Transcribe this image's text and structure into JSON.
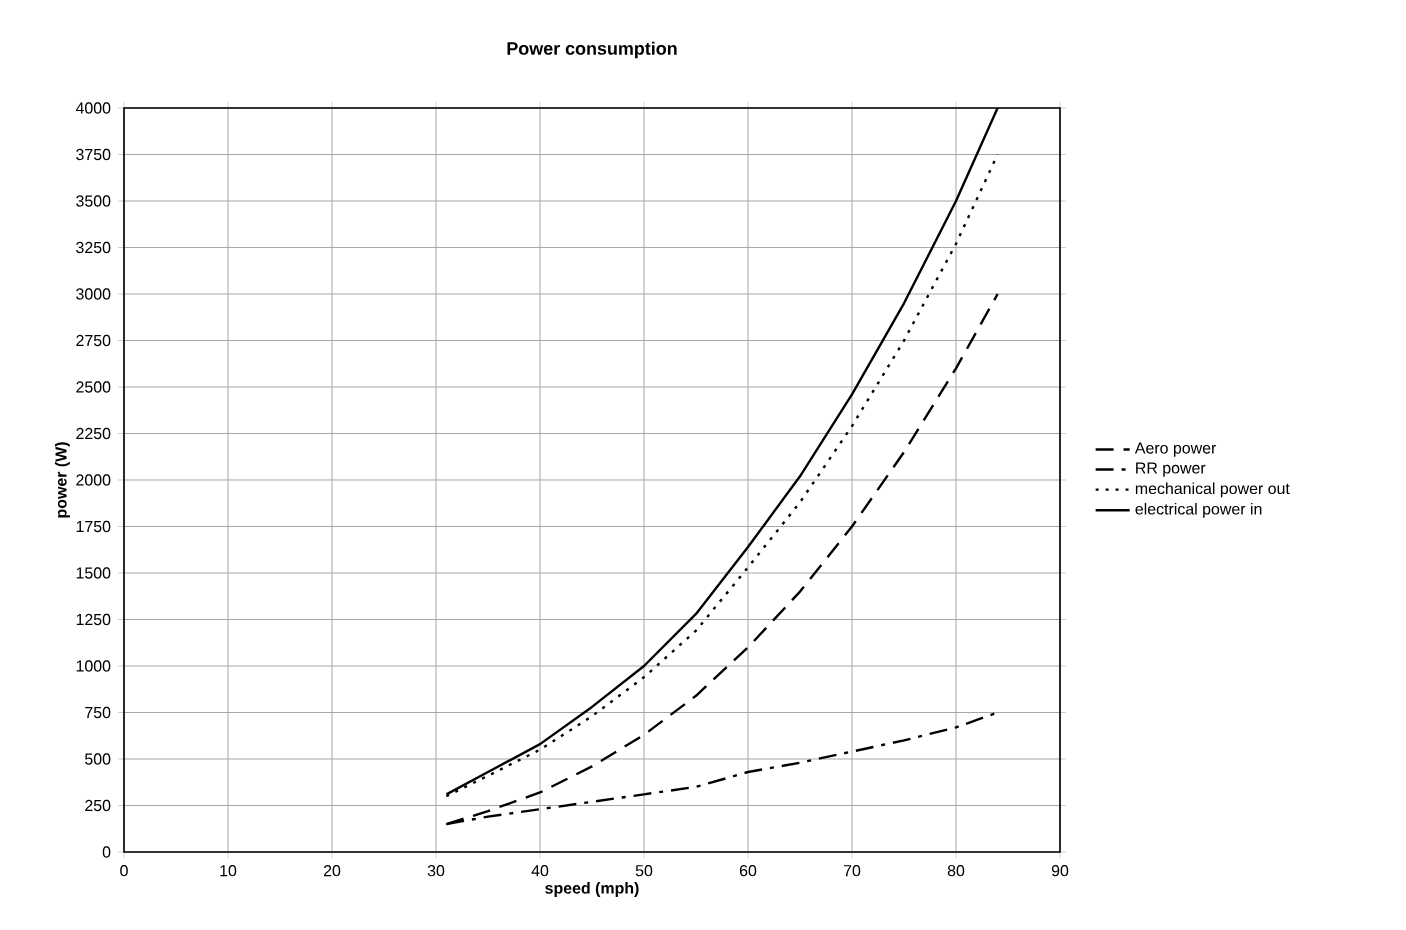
{
  "chart_data": {
    "type": "line",
    "title": "Power consumption",
    "xlabel": "speed (mph)",
    "ylabel": "power (W)",
    "x": [
      31,
      35,
      40,
      45,
      50,
      55,
      60,
      65,
      70,
      75,
      80,
      84
    ],
    "series": [
      {
        "name": "Aero power",
        "color": "#000000",
        "line_style": "dashed",
        "values": [
          150,
          220,
          320,
          460,
          630,
          840,
          1100,
          1400,
          1750,
          2150,
          2600,
          3000
        ]
      },
      {
        "name": "RR power",
        "color": "#000000",
        "line_style": "dashdot",
        "values": [
          150,
          190,
          230,
          270,
          310,
          350,
          430,
          480,
          540,
          600,
          670,
          750
        ]
      },
      {
        "name": "mechanical power out",
        "color": "#000000",
        "line_style": "dotted",
        "values": [
          300,
          410,
          550,
          730,
          940,
          1190,
          1530,
          1880,
          2290,
          2750,
          3270,
          3750
        ]
      },
      {
        "name": "electrical power in",
        "color": "#000000",
        "line_style": "solid",
        "values": [
          310,
          430,
          580,
          780,
          1000,
          1280,
          1640,
          2020,
          2460,
          2950,
          3500,
          4000
        ]
      }
    ],
    "xlim": [
      0,
      90
    ],
    "xticks": [
      0,
      10,
      20,
      30,
      40,
      50,
      60,
      70,
      80,
      90
    ],
    "ylim": [
      0,
      4000
    ],
    "yticks": [
      0,
      250,
      500,
      750,
      1000,
      1250,
      1500,
      1750,
      2000,
      2250,
      2500,
      2750,
      3000,
      3250,
      3500,
      3750,
      4000
    ],
    "grid": true,
    "legend": "right",
    "marker": "none"
  }
}
